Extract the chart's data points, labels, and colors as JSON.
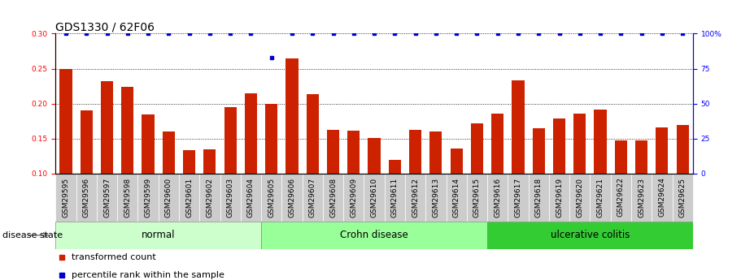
{
  "title": "GDS1330 / 62F06",
  "categories": [
    "GSM29595",
    "GSM29596",
    "GSM29597",
    "GSM29598",
    "GSM29599",
    "GSM29600",
    "GSM29601",
    "GSM29602",
    "GSM29603",
    "GSM29604",
    "GSM29605",
    "GSM29606",
    "GSM29607",
    "GSM29608",
    "GSM29609",
    "GSM29610",
    "GSM29611",
    "GSM29612",
    "GSM29613",
    "GSM29614",
    "GSM29615",
    "GSM29616",
    "GSM29617",
    "GSM29618",
    "GSM29619",
    "GSM29620",
    "GSM29621",
    "GSM29622",
    "GSM29623",
    "GSM29624",
    "GSM29625"
  ],
  "bar_values": [
    0.249,
    0.19,
    0.232,
    0.224,
    0.184,
    0.16,
    0.133,
    0.135,
    0.195,
    0.215,
    0.2,
    0.265,
    0.213,
    0.163,
    0.161,
    0.151,
    0.12,
    0.162,
    0.16,
    0.136,
    0.172,
    0.186,
    0.233,
    0.165,
    0.179,
    0.186,
    0.192,
    0.147,
    0.148,
    0.166,
    0.17
  ],
  "percentile_values": [
    100,
    100,
    100,
    100,
    100,
    100,
    100,
    100,
    100,
    100,
    83,
    100,
    100,
    100,
    100,
    100,
    100,
    100,
    100,
    100,
    100,
    100,
    100,
    100,
    100,
    100,
    100,
    100,
    100,
    100,
    100
  ],
  "bar_color": "#CC2200",
  "dot_color": "#0000CC",
  "ylim_left": [
    0.1,
    0.3
  ],
  "ylim_right": [
    0,
    100
  ],
  "yticks_left": [
    0.1,
    0.15,
    0.2,
    0.25,
    0.3
  ],
  "yticks_right": [
    0,
    25,
    50,
    75,
    100
  ],
  "ytick_right_labels": [
    "0",
    "25",
    "50",
    "75",
    "100%"
  ],
  "groups": [
    {
      "label": "normal",
      "start": 0,
      "end": 10,
      "color": "#CCFFCC"
    },
    {
      "label": "Crohn disease",
      "start": 10,
      "end": 21,
      "color": "#99FF99"
    },
    {
      "label": "ulcerative colitis",
      "start": 21,
      "end": 31,
      "color": "#33CC33"
    }
  ],
  "disease_state_label": "disease state",
  "legend_bar_label": "transformed count",
  "legend_dot_label": "percentile rank within the sample",
  "title_fontsize": 10,
  "tick_fontsize": 6.5,
  "label_fontsize": 8,
  "group_label_fontsize": 8.5,
  "background_color": "#FFFFFF",
  "plot_bg_color": "#FFFFFF",
  "grid_color": "#333333"
}
